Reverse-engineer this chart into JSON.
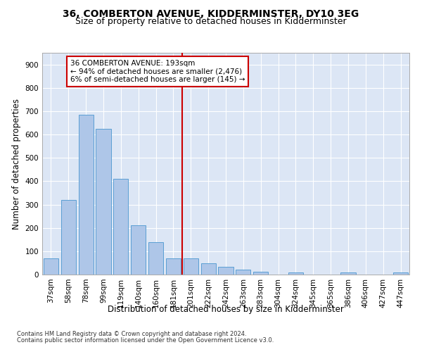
{
  "title": "36, COMBERTON AVENUE, KIDDERMINSTER, DY10 3EG",
  "subtitle": "Size of property relative to detached houses in Kidderminster",
  "xlabel": "Distribution of detached houses by size in Kidderminster",
  "ylabel": "Number of detached properties",
  "categories": [
    "37sqm",
    "58sqm",
    "78sqm",
    "99sqm",
    "119sqm",
    "140sqm",
    "160sqm",
    "181sqm",
    "201sqm",
    "222sqm",
    "242sqm",
    "263sqm",
    "283sqm",
    "304sqm",
    "324sqm",
    "345sqm",
    "365sqm",
    "386sqm",
    "406sqm",
    "427sqm",
    "447sqm"
  ],
  "values": [
    70,
    320,
    685,
    625,
    410,
    210,
    138,
    70,
    68,
    47,
    33,
    22,
    12,
    0,
    8,
    0,
    0,
    8,
    0,
    0,
    8
  ],
  "bar_color": "#aec6e8",
  "bar_edge_color": "#5a9fd4",
  "vline_x": 7.5,
  "vline_color": "#cc0000",
  "annotation_line1": "36 COMBERTON AVENUE: 193sqm",
  "annotation_line2": "← 94% of detached houses are smaller (2,476)",
  "annotation_line3": "6% of semi-detached houses are larger (145) →",
  "annotation_box_color": "#cc0000",
  "annotation_bg_color": "#ffffff",
  "ylim": [
    0,
    950
  ],
  "yticks": [
    0,
    100,
    200,
    300,
    400,
    500,
    600,
    700,
    800,
    900
  ],
  "footnote1": "Contains HM Land Registry data © Crown copyright and database right 2024.",
  "footnote2": "Contains public sector information licensed under the Open Government Licence v3.0.",
  "plot_bg_color": "#dce6f5",
  "title_fontsize": 10,
  "subtitle_fontsize": 9,
  "tick_fontsize": 7.5,
  "label_fontsize": 8.5,
  "annotation_fontsize": 7.5
}
